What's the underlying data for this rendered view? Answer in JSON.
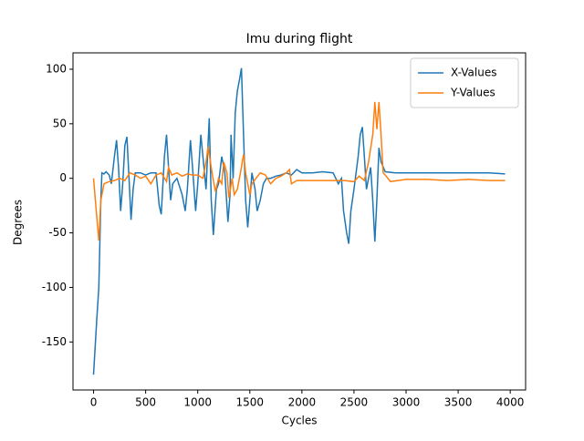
{
  "chart_data": {
    "type": "line",
    "title": "Imu during flight",
    "xlabel": "Cycles",
    "ylabel": "Degrees",
    "xlim": [
      -197.5,
      4147.5
    ],
    "ylim": [
      -194,
      115
    ],
    "xticks": [
      0,
      500,
      1000,
      1500,
      2000,
      2500,
      3000,
      3500,
      4000
    ],
    "yticks": [
      -150,
      -100,
      -50,
      0,
      50,
      100
    ],
    "legend": "upper right",
    "series": [
      {
        "name": "X-Values",
        "color": "#1f77b4",
        "x": [
          0,
          30,
          50,
          70,
          80,
          100,
          120,
          150,
          170,
          200,
          220,
          240,
          260,
          280,
          300,
          320,
          340,
          360,
          380,
          400,
          450,
          500,
          550,
          600,
          630,
          650,
          680,
          700,
          720,
          740,
          760,
          800,
          850,
          880,
          900,
          930,
          950,
          980,
          1000,
          1030,
          1060,
          1080,
          1110,
          1130,
          1150,
          1180,
          1200,
          1230,
          1260,
          1290,
          1310,
          1320,
          1340,
          1360,
          1380,
          1400,
          1420,
          1440,
          1460,
          1480,
          1500,
          1520,
          1550,
          1570,
          1600,
          1630,
          1660,
          1700,
          1750,
          1800,
          1850,
          1900,
          1950,
          2000,
          2100,
          2200,
          2300,
          2350,
          2380,
          2400,
          2430,
          2450,
          2470,
          2500,
          2540,
          2560,
          2580,
          2600,
          2620,
          2640,
          2660,
          2680,
          2700,
          2720,
          2740,
          2760,
          2800,
          2900,
          3000,
          3200,
          3400,
          3600,
          3800,
          3950
        ],
        "values": [
          -180,
          -130,
          -100,
          -20,
          5,
          4,
          6,
          3,
          -5,
          20,
          35,
          10,
          -30,
          -5,
          30,
          38,
          0,
          -38,
          -10,
          5,
          5,
          3,
          5,
          5,
          -25,
          -33,
          20,
          40,
          10,
          -20,
          -5,
          0,
          -15,
          -30,
          -10,
          35,
          10,
          -30,
          -5,
          40,
          10,
          -10,
          55,
          -20,
          -52,
          -10,
          -5,
          20,
          5,
          -40,
          -15,
          40,
          0,
          60,
          80,
          90,
          101,
          40,
          -20,
          -45,
          -20,
          5,
          -10,
          -30,
          -20,
          -5,
          0,
          0,
          2,
          3,
          5,
          3,
          8,
          5,
          5,
          6,
          5,
          -5,
          0,
          -30,
          -50,
          -60,
          -30,
          -10,
          20,
          40,
          47,
          20,
          -10,
          0,
          10,
          -20,
          -58,
          -20,
          28,
          15,
          6,
          5,
          5,
          5,
          5,
          5,
          5,
          4
        ]
      },
      {
        "name": "Y-Values",
        "color": "#ff7f0e",
        "x": [
          0,
          30,
          50,
          70,
          100,
          150,
          200,
          250,
          300,
          350,
          400,
          450,
          500,
          550,
          600,
          650,
          700,
          720,
          750,
          800,
          850,
          900,
          950,
          1000,
          1050,
          1080,
          1100,
          1130,
          1150,
          1170,
          1200,
          1230,
          1250,
          1280,
          1300,
          1330,
          1350,
          1380,
          1410,
          1440,
          1460,
          1480,
          1500,
          1520,
          1560,
          1600,
          1650,
          1700,
          1750,
          1800,
          1850,
          1880,
          1900,
          1950,
          2000,
          2200,
          2400,
          2500,
          2550,
          2600,
          2640,
          2680,
          2700,
          2720,
          2740,
          2760,
          2780,
          2800,
          2850,
          3000,
          3200,
          3400,
          3600,
          3800,
          3950
        ],
        "values": [
          0,
          -35,
          -57,
          -20,
          -5,
          -3,
          -2,
          0,
          -2,
          5,
          3,
          0,
          2,
          -5,
          3,
          5,
          -3,
          10,
          3,
          5,
          2,
          4,
          3,
          3,
          0,
          15,
          29,
          10,
          -2,
          -12,
          0,
          -5,
          15,
          5,
          -18,
          0,
          -15,
          -10,
          5,
          22,
          5,
          -5,
          -15,
          -5,
          0,
          5,
          3,
          -5,
          0,
          2,
          5,
          8,
          -5,
          -2,
          -2,
          -2,
          -2,
          -3,
          2,
          -2,
          15,
          40,
          70,
          45,
          70,
          40,
          5,
          3,
          -3,
          -1,
          -1,
          -2,
          -1,
          -2,
          -2
        ]
      }
    ]
  }
}
